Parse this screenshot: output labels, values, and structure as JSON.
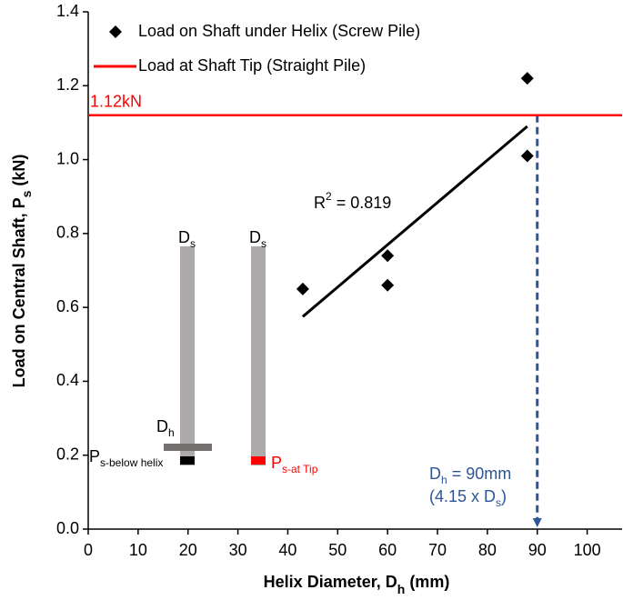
{
  "chart_data": {
    "type": "scatter",
    "xlabel": [
      {
        "t": "Helix Diameter, D"
      },
      {
        "sub": "h"
      },
      {
        "t": " (mm)"
      }
    ],
    "ylabel": [
      {
        "t": "Load on Central Shaft, P"
      },
      {
        "sub": "s"
      },
      {
        "t": " (kN)"
      }
    ],
    "xlim": [
      0,
      107
    ],
    "xticks": [
      0,
      10,
      20,
      30,
      40,
      50,
      60,
      70,
      80,
      90,
      100
    ],
    "ylim": [
      0,
      1.4
    ],
    "yticks": [
      {
        "value": 0,
        "label": "0.0"
      },
      0.2,
      0.4,
      0.6,
      0.8,
      {
        "value": 1,
        "label": "1.0"
      },
      1.2,
      1.4
    ],
    "series": [
      {
        "name": "Load on Shaft under Helix (Screw Pile)",
        "color": "#000000",
        "marker": "diamond",
        "x": [
          43,
          60,
          60,
          88,
          88
        ],
        "values": [
          0.65,
          0.74,
          0.66,
          1.01,
          1.22
        ]
      },
      {
        "name": "Load at Shaft Tip (Straight Pile)",
        "color": "#ff0000",
        "marker": "hline",
        "values": [
          1.12
        ],
        "value_labels": [
          "1.12kN"
        ]
      }
    ],
    "trendline": {
      "x": [
        43,
        88
      ],
      "values": [
        0.575,
        1.09
      ],
      "color": "#000000",
      "label": [
        {
          "t": "R"
        },
        {
          "sup": "2"
        },
        {
          "t": " = 0.819"
        }
      ]
    },
    "vline": {
      "x": 90,
      "color": "#2f5597",
      "label": [
        [
          {
            "t": "D"
          },
          {
            "sub": "h"
          },
          {
            "t": " = 90mm"
          }
        ],
        [
          {
            "t": "(4.15 x D"
          },
          {
            "sub": "s"
          },
          {
            "t": ")"
          }
        ]
      ]
    },
    "schematic": {
      "shaft_label_1": [
        {
          "t": "D"
        },
        {
          "sub": "s"
        }
      ],
      "shaft_label_2": [
        {
          "t": "D"
        },
        {
          "sub": "s"
        }
      ],
      "helix_label": [
        {
          "t": "D"
        },
        {
          "sub": "h"
        }
      ],
      "helix_load": [
        {
          "t": "P"
        },
        {
          "sub": "s-below helix"
        }
      ],
      "tip_load": [
        {
          "t": "P"
        },
        {
          "sub": "s-at Tip"
        }
      ]
    }
  }
}
